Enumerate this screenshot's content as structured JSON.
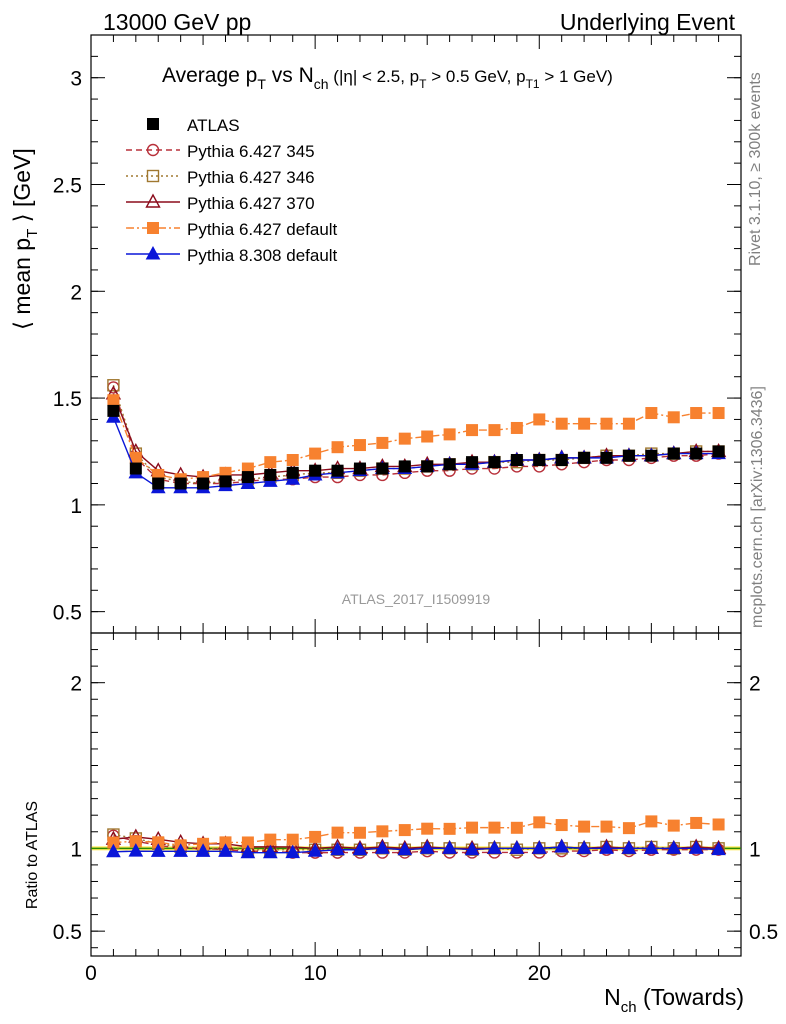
{
  "header": {
    "left": "13000 GeV pp",
    "right": "Underlying Event"
  },
  "side_labels": {
    "rivet": "Rivet 3.1.10, ≥ 300k events",
    "mcplots": "mcplots.cern.ch [arXiv:1306.3436]"
  },
  "chart_data": {
    "type": "line",
    "title": "Average p_T vs N_ch (|η| < 2.5, p_T > 0.5 GeV, p_T1 > 1 GeV)",
    "watermark": "ATLAS_2017_I1509919",
    "xlabel": "N_ch (Towards)",
    "ylabel": "⟨ mean p_T ⟩ [GeV]",
    "ratio_ylabel": "Ratio to ATLAS",
    "xlim": [
      0,
      29
    ],
    "ylim": [
      0.4,
      3.2
    ],
    "ratio_ylim": [
      0.35,
      2.3
    ],
    "x_ticks": [
      0,
      10,
      20
    ],
    "y_ticks": [
      0.5,
      1,
      1.5,
      2,
      2.5,
      3
    ],
    "ratio_y_ticks": [
      0.5,
      1,
      2
    ],
    "legend_position": "top-left",
    "x": [
      1,
      2,
      3,
      4,
      5,
      6,
      7,
      8,
      9,
      10,
      11,
      12,
      13,
      14,
      15,
      16,
      17,
      18,
      19,
      20,
      21,
      22,
      23,
      24,
      25,
      26,
      27,
      28
    ],
    "series": [
      {
        "name": "ATLAS",
        "color": "#000000",
        "marker": "square",
        "line": "none",
        "values": [
          1.44,
          1.17,
          1.1,
          1.1,
          1.1,
          1.11,
          1.13,
          1.14,
          1.15,
          1.16,
          1.16,
          1.17,
          1.17,
          1.18,
          1.18,
          1.19,
          1.2,
          1.2,
          1.21,
          1.21,
          1.21,
          1.22,
          1.22,
          1.23,
          1.23,
          1.24,
          1.24,
          1.25
        ]
      },
      {
        "name": "Pythia 6.427 345",
        "color": "#b8303a",
        "marker": "open-circle",
        "line": "dashed",
        "values": [
          1.55,
          1.22,
          1.12,
          1.1,
          1.1,
          1.1,
          1.11,
          1.12,
          1.12,
          1.13,
          1.13,
          1.14,
          1.14,
          1.15,
          1.16,
          1.16,
          1.17,
          1.17,
          1.18,
          1.18,
          1.19,
          1.2,
          1.21,
          1.21,
          1.22,
          1.23,
          1.23,
          1.24
        ]
      },
      {
        "name": "Pythia 6.427 346",
        "color": "#a07830",
        "marker": "open-square",
        "line": "dotted",
        "values": [
          1.56,
          1.24,
          1.13,
          1.11,
          1.1,
          1.11,
          1.12,
          1.13,
          1.14,
          1.15,
          1.15,
          1.16,
          1.17,
          1.17,
          1.18,
          1.19,
          1.19,
          1.2,
          1.2,
          1.21,
          1.21,
          1.22,
          1.23,
          1.23,
          1.24,
          1.24,
          1.25,
          1.25
        ]
      },
      {
        "name": "Pythia 6.427 370",
        "color": "#8b0c1c",
        "marker": "open-triangle",
        "line": "solid",
        "values": [
          1.52,
          1.25,
          1.16,
          1.14,
          1.13,
          1.14,
          1.14,
          1.15,
          1.16,
          1.16,
          1.17,
          1.17,
          1.18,
          1.18,
          1.19,
          1.19,
          1.2,
          1.2,
          1.21,
          1.21,
          1.22,
          1.22,
          1.23,
          1.23,
          1.23,
          1.24,
          1.25,
          1.25
        ]
      },
      {
        "name": "Pythia 6.427 default",
        "color": "#f7812f",
        "marker": "filled-square",
        "line": "dashdot",
        "values": [
          1.49,
          1.22,
          1.14,
          1.12,
          1.13,
          1.15,
          1.17,
          1.2,
          1.21,
          1.24,
          1.27,
          1.28,
          1.29,
          1.31,
          1.32,
          1.33,
          1.35,
          1.35,
          1.36,
          1.4,
          1.38,
          1.38,
          1.38,
          1.38,
          1.43,
          1.41,
          1.43,
          1.43
        ]
      },
      {
        "name": "Pythia 8.308 default",
        "color": "#0a16d8",
        "marker": "filled-triangle",
        "line": "solid",
        "values": [
          1.41,
          1.15,
          1.08,
          1.08,
          1.08,
          1.09,
          1.1,
          1.11,
          1.12,
          1.14,
          1.15,
          1.16,
          1.17,
          1.17,
          1.18,
          1.19,
          1.19,
          1.2,
          1.21,
          1.21,
          1.22,
          1.22,
          1.22,
          1.23,
          1.23,
          1.24,
          1.24,
          1.24
        ]
      }
    ]
  }
}
